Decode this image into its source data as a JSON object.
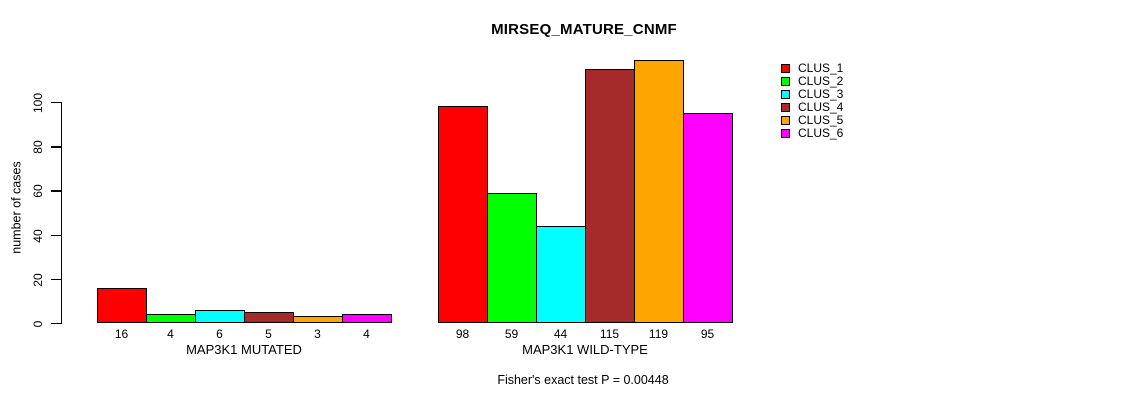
{
  "title": "MIRSEQ_MATURE_CNMF",
  "footer": "Fisher's exact test P = 0.00448",
  "y_axis": {
    "label": "number of cases",
    "ticks": [
      0,
      20,
      40,
      60,
      80,
      100
    ]
  },
  "legend": {
    "items": [
      {
        "label": "CLUS_1",
        "color": "#FF0000"
      },
      {
        "label": "CLUS_2",
        "color": "#00FF00"
      },
      {
        "label": "CLUS_3",
        "color": "#00FFFF"
      },
      {
        "label": "CLUS_4",
        "color": "#A52A2A"
      },
      {
        "label": "CLUS_5",
        "color": "#FFA500"
      },
      {
        "label": "CLUS_6",
        "color": "#FF00FF"
      }
    ]
  },
  "chart_data": {
    "type": "bar",
    "title": "MIRSEQ_MATURE_CNMF",
    "ylabel": "number of cases",
    "xlabel": "",
    "ylim": [
      0,
      120
    ],
    "yticks": [
      0,
      20,
      40,
      60,
      80,
      100
    ],
    "grid": false,
    "legend_position": "right-inside-top",
    "bar_value_labels_shown": true,
    "categories": [
      "MAP3K1 MUTATED",
      "MAP3K1 WILD-TYPE"
    ],
    "series": [
      {
        "name": "CLUS_1",
        "color": "#FF0000",
        "values": [
          16,
          98
        ]
      },
      {
        "name": "CLUS_2",
        "color": "#00FF00",
        "values": [
          4,
          59
        ]
      },
      {
        "name": "CLUS_3",
        "color": "#00FFFF",
        "values": [
          6,
          44
        ]
      },
      {
        "name": "CLUS_4",
        "color": "#A52A2A",
        "values": [
          5,
          115
        ]
      },
      {
        "name": "CLUS_5",
        "color": "#FFA500",
        "values": [
          3,
          119
        ]
      },
      {
        "name": "CLUS_6",
        "color": "#FF00FF",
        "values": [
          4,
          95
        ]
      }
    ],
    "annotation": "Fisher's exact test P = 0.00448"
  }
}
